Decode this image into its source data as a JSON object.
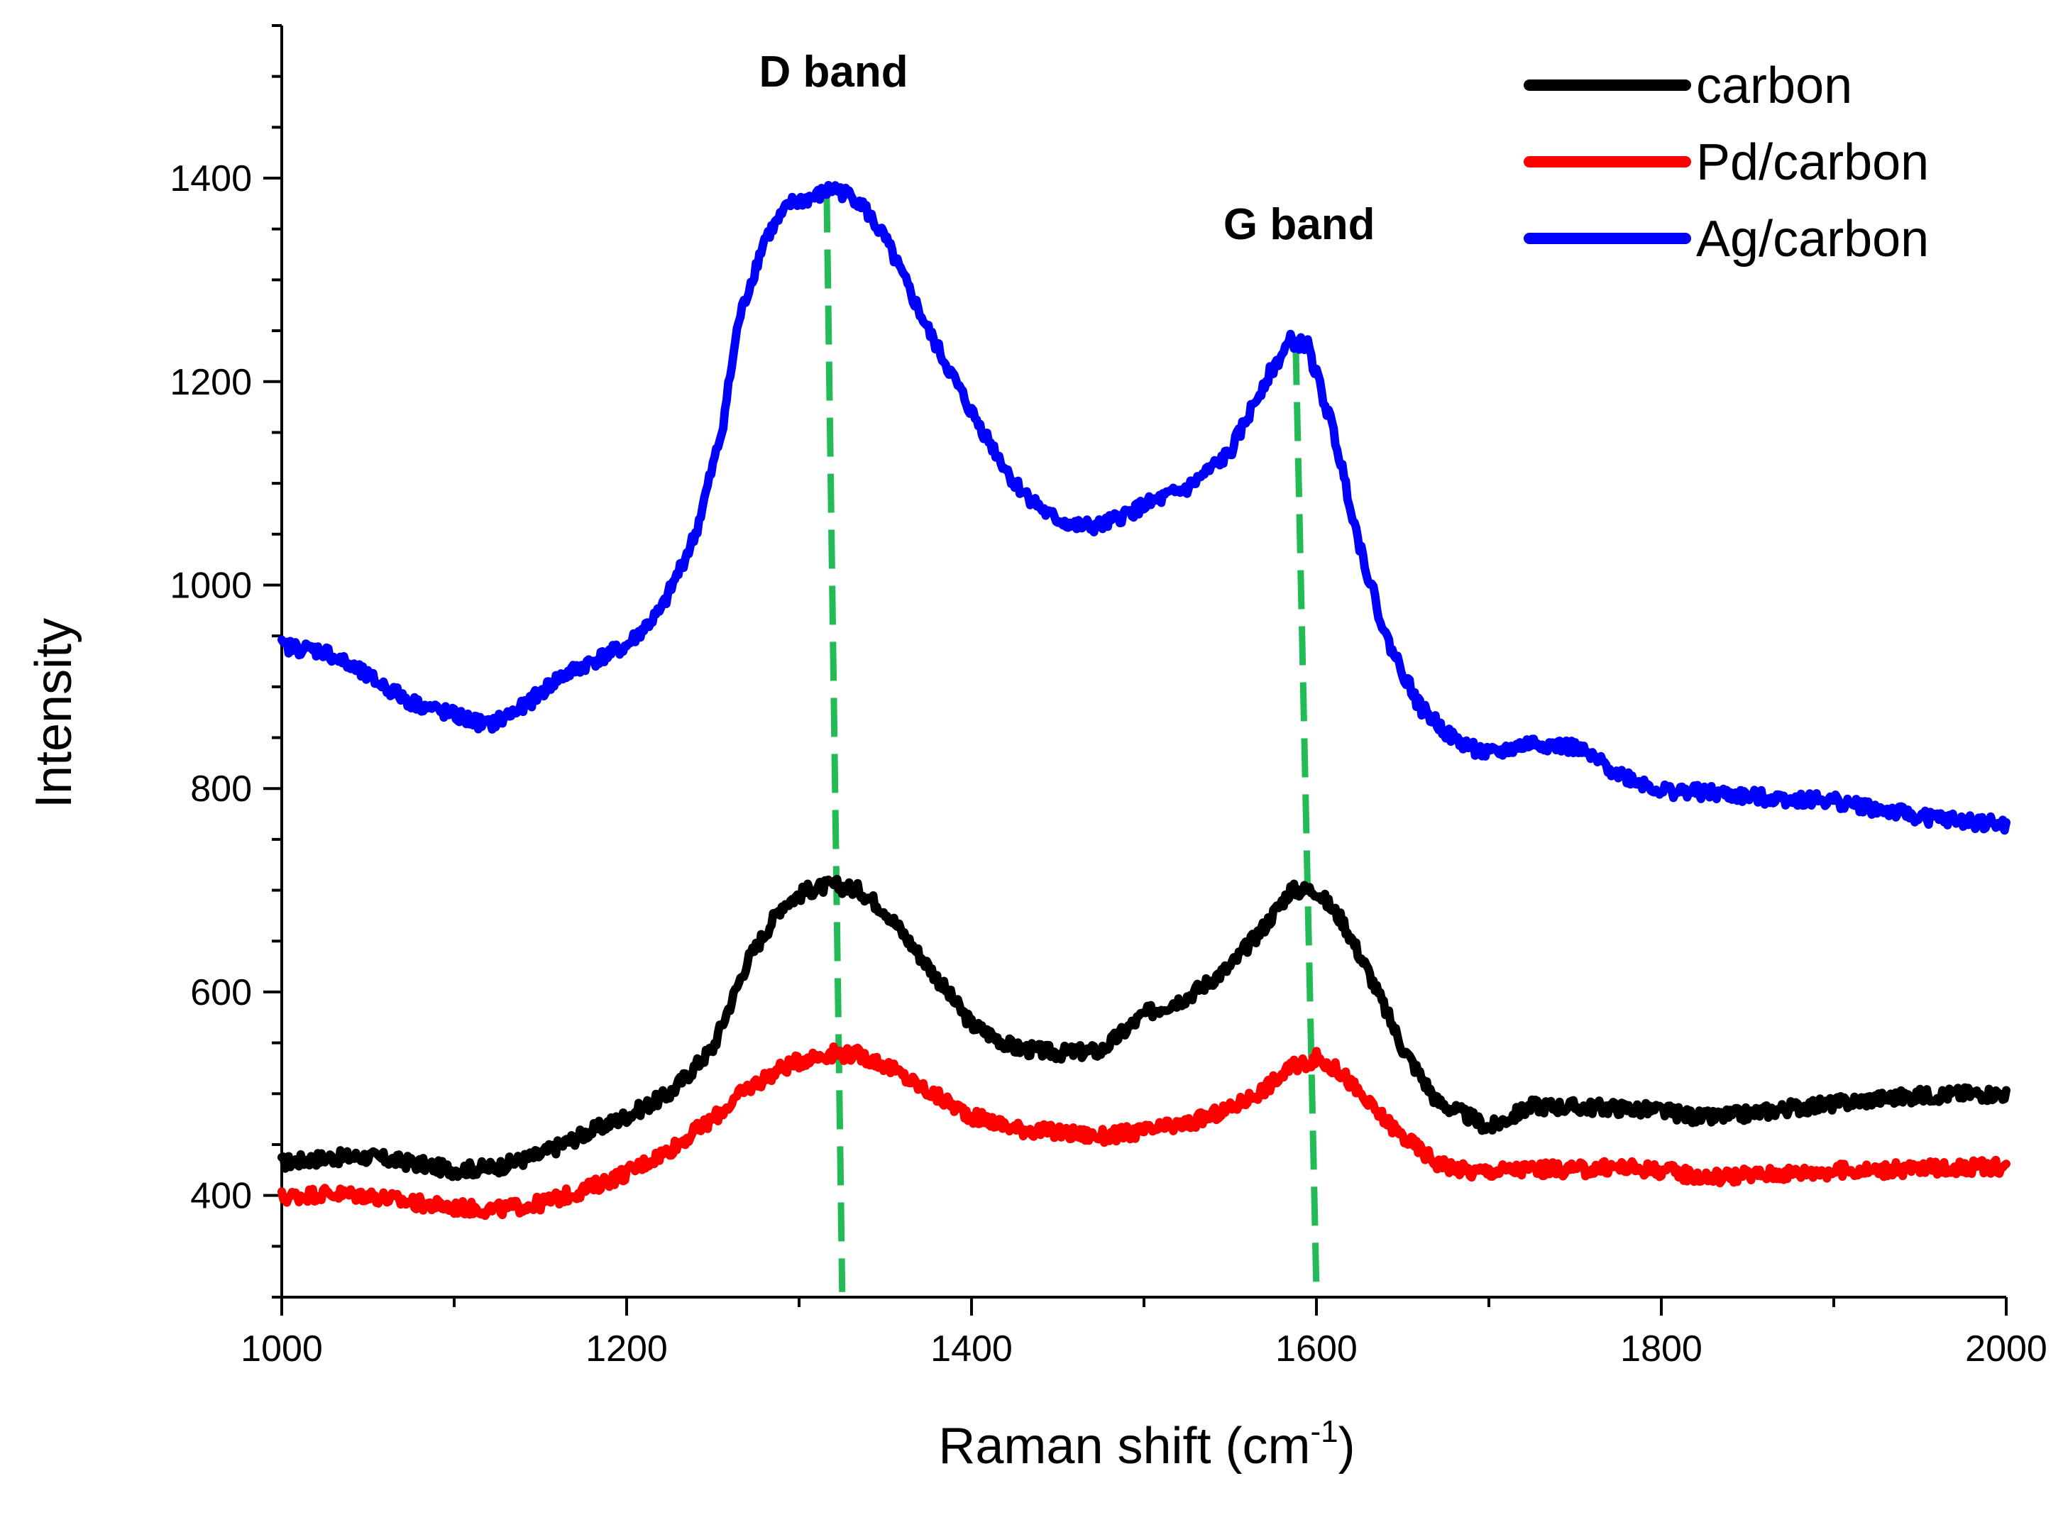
{
  "chart_data": {
    "type": "line",
    "xlabel": "Raman shift (cm",
    "xlabel_sup": "-1",
    "xlabel_close": ")",
    "ylabel": "Intensity",
    "xlim": [
      1000,
      2000
    ],
    "ylim": [
      300,
      1550
    ],
    "xticks": [
      1000,
      1200,
      1400,
      1600,
      1800,
      2000
    ],
    "yticks": [
      400,
      600,
      800,
      1000,
      1200,
      1400
    ],
    "grid": false,
    "legend_position": "top-right",
    "series": [
      {
        "name": "carbon",
        "color": "#000000",
        "x": [
          1000,
          1025,
          1050,
          1075,
          1100,
          1125,
          1150,
          1175,
          1200,
          1225,
          1250,
          1270,
          1290,
          1305,
          1320,
          1335,
          1350,
          1375,
          1400,
          1425,
          1450,
          1475,
          1500,
          1525,
          1550,
          1570,
          1585,
          1600,
          1615,
          1630,
          1650,
          1670,
          1690,
          1700,
          1725,
          1750,
          1775,
          1800,
          1825,
          1850,
          1875,
          1900,
          1925,
          1950,
          1975,
          2000
        ],
        "y": [
          432,
          437,
          438,
          432,
          425,
          428,
          440,
          460,
          478,
          500,
          545,
          630,
          685,
          700,
          705,
          700,
          680,
          625,
          568,
          545,
          540,
          542,
          578,
          595,
          625,
          665,
          700,
          700,
          670,
          620,
          545,
          492,
          476,
          466,
          488,
          487,
          486,
          483,
          476,
          480,
          486,
          490,
          495,
          498,
          500,
          500
        ]
      },
      {
        "name": "Pd/carbon",
        "color": "#ff0000",
        "x": [
          1000,
          1025,
          1050,
          1075,
          1100,
          1125,
          1150,
          1175,
          1200,
          1225,
          1250,
          1270,
          1290,
          1305,
          1320,
          1335,
          1350,
          1375,
          1400,
          1425,
          1450,
          1475,
          1500,
          1525,
          1550,
          1570,
          1585,
          1600,
          1615,
          1630,
          1650,
          1670,
          1690,
          1700,
          1725,
          1750,
          1775,
          1800,
          1825,
          1850,
          1875,
          1900,
          1925,
          1950,
          1975,
          2000
        ],
        "y": [
          398,
          402,
          400,
          393,
          388,
          386,
          392,
          405,
          422,
          445,
          475,
          505,
          525,
          535,
          540,
          538,
          528,
          502,
          478,
          466,
          462,
          458,
          463,
          470,
          485,
          505,
          525,
          535,
          520,
          490,
          458,
          432,
          423,
          424,
          426,
          425,
          428,
          425,
          418,
          420,
          422,
          424,
          425,
          426,
          428,
          428
        ]
      },
      {
        "name": "Ag/carbon",
        "color": "#0000ff",
        "x": [
          1000,
          1025,
          1050,
          1075,
          1100,
          1120,
          1140,
          1160,
          1180,
          1200,
          1220,
          1240,
          1255,
          1265,
          1280,
          1295,
          1310,
          1320,
          1335,
          1350,
          1375,
          1400,
          1425,
          1445,
          1460,
          1475,
          1500,
          1525,
          1550,
          1570,
          1585,
          1595,
          1610,
          1625,
          1640,
          1660,
          1680,
          1700,
          1725,
          1750,
          1775,
          1800,
          1825,
          1850,
          1875,
          1900,
          1925,
          1950,
          1975,
          2000
        ],
        "y": [
          940,
          935,
          910,
          885,
          872,
          862,
          880,
          908,
          925,
          940,
          975,
          1050,
          1150,
          1260,
          1340,
          1375,
          1382,
          1390,
          1378,
          1340,
          1250,
          1170,
          1100,
          1068,
          1058,
          1058,
          1078,
          1095,
          1130,
          1200,
          1240,
          1235,
          1150,
          1040,
          950,
          880,
          848,
          833,
          845,
          840,
          815,
          798,
          796,
          792,
          790,
          788,
          780,
          772,
          768,
          764
        ]
      }
    ],
    "annotations": [
      {
        "text": "D band",
        "x": 1320,
        "y": 1490,
        "line_x_top": 1316,
        "line_y_top": 1385,
        "line_x_bottom": 1325,
        "line_y_bottom": 305
      },
      {
        "text": "G band",
        "x": 1590,
        "y": 1340,
        "line_x_top": 1588,
        "line_y_top": 1235,
        "line_x_bottom": 1600,
        "line_y_bottom": 305
      }
    ],
    "annotation_line_color": "#22bb55"
  }
}
